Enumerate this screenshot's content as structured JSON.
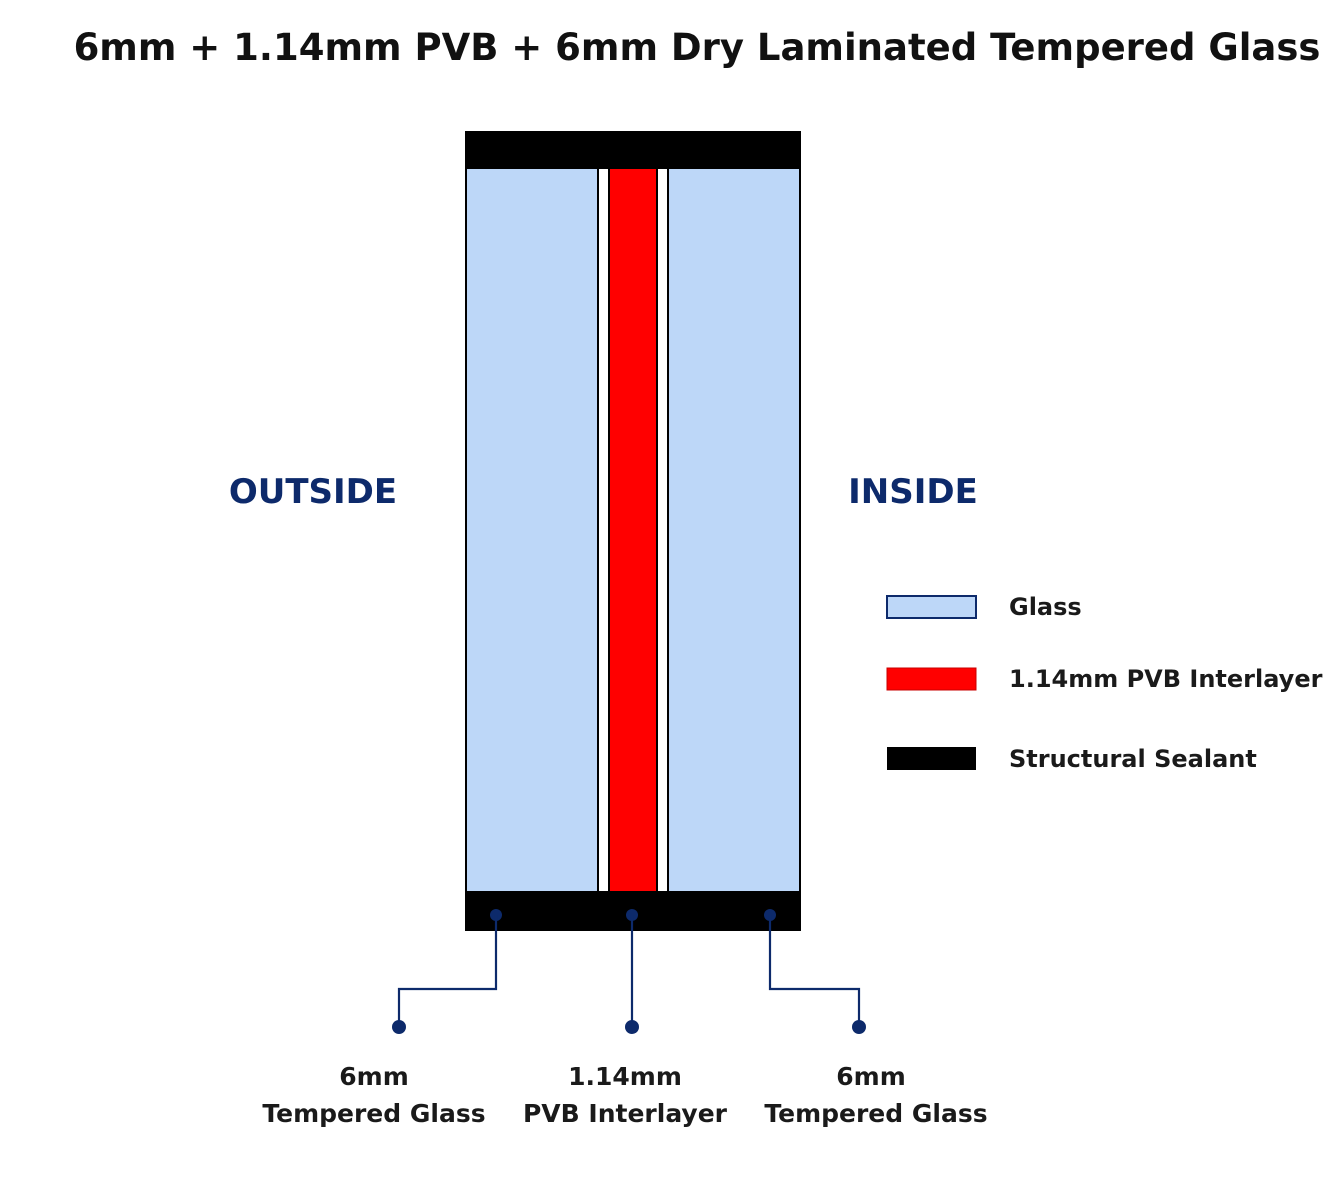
{
  "title": "6mm + 1.14mm PVB + 6mm Dry Laminated Tempered Glass",
  "sides": {
    "outside": "OUTSIDE",
    "inside": "INSIDE"
  },
  "legend": [
    {
      "label": "Glass",
      "color": "#bdd7f8",
      "border": "#0d2a6b"
    },
    {
      "label": "1.14mm PVB Interlayer",
      "color": "#ff0000",
      "border": "#c80000"
    },
    {
      "label": "Structural Sealant",
      "color": "#000000",
      "border": "#000000"
    }
  ],
  "callouts": [
    {
      "line1": "6mm",
      "line2": "Tempered Glass"
    },
    {
      "line1": "1.14mm",
      "line2": "PVB Interlayer"
    },
    {
      "line1": "6mm",
      "line2": "Tempered Glass"
    }
  ],
  "colors": {
    "glass": "#bdd7f8",
    "pvb": "#ff0000",
    "sealant": "#000000",
    "accent": "#0d2a6b"
  }
}
